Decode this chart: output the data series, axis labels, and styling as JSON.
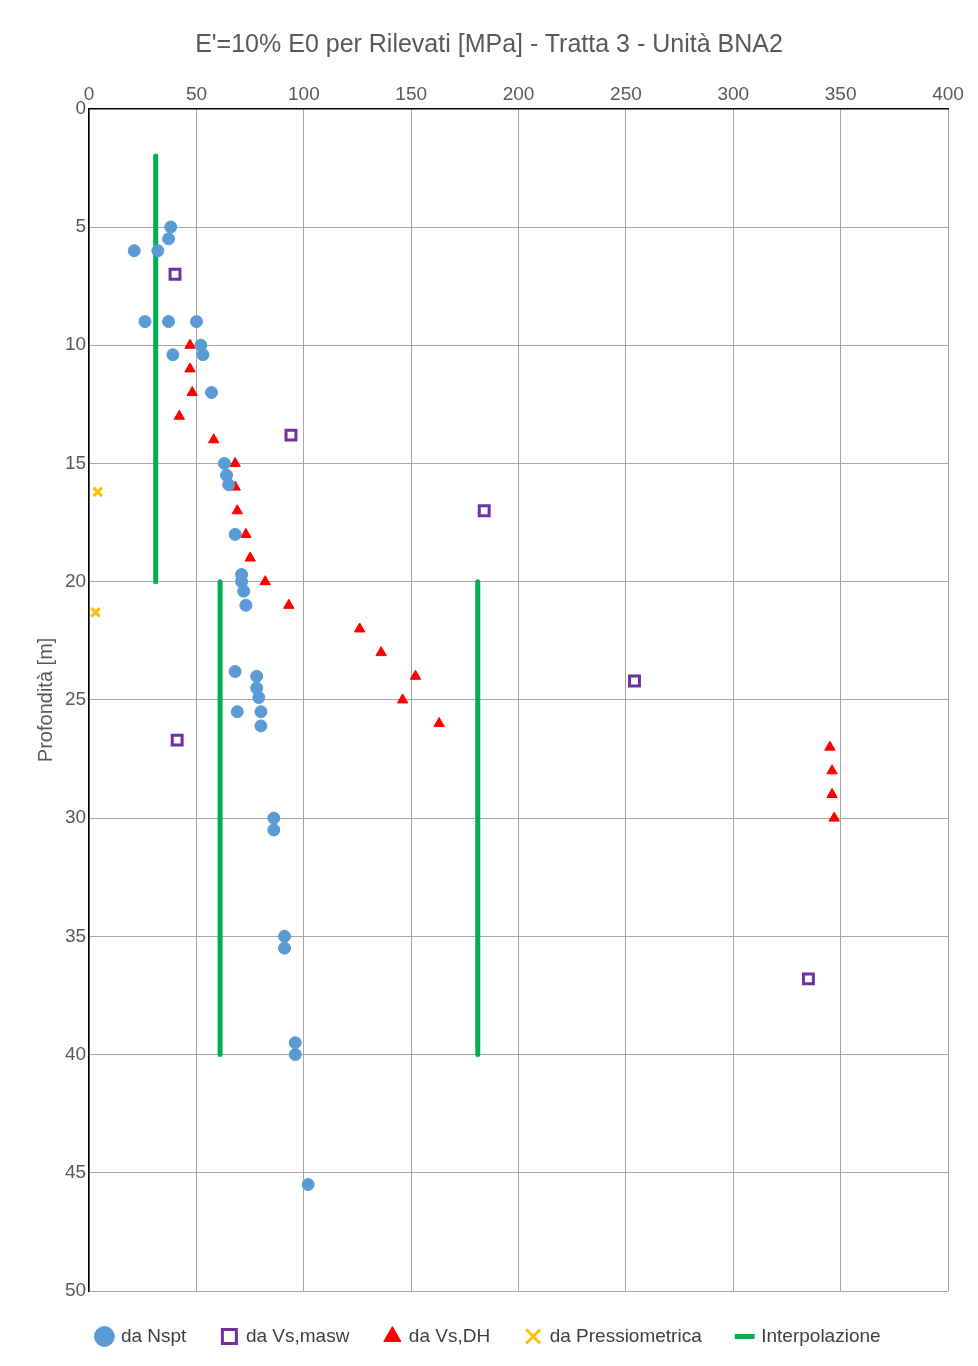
{
  "chart_data": {
    "type": "scatter",
    "title": "E'=10% E0 per Rilevati [MPa] - Tratta 3 - Unità BNA2",
    "ylabel": "Profondità [m]",
    "xlim": [
      0,
      400
    ],
    "xticks": [
      0,
      50,
      100,
      150,
      200,
      250,
      300,
      350,
      400
    ],
    "ylim": [
      50,
      0
    ],
    "yticks": [
      0,
      5,
      10,
      15,
      20,
      25,
      30,
      35,
      40,
      45,
      50
    ],
    "grid": true,
    "legend": "bottom",
    "series": [
      {
        "name": "da Nspt",
        "color": "#5b9bd5",
        "marker": "circle",
        "x": [
          38,
          37,
          21,
          32,
          26,
          37,
          50,
          52,
          39,
          53,
          57,
          63,
          64,
          65,
          68,
          71,
          71,
          72,
          73,
          68,
          78,
          78,
          79,
          80,
          69,
          80,
          86,
          86,
          91,
          91,
          96,
          96,
          102
        ],
        "values": [
          5,
          5.5,
          6,
          6,
          9,
          9,
          9,
          10,
          10.4,
          10.4,
          12,
          15,
          15.5,
          15.9,
          18,
          19.7,
          20,
          20.4,
          21,
          23.8,
          24,
          24.5,
          24.9,
          25.5,
          25.5,
          26.1,
          30,
          30.5,
          35,
          35.5,
          39.5,
          40,
          45.5
        ]
      },
      {
        "name": "da Vs,masw",
        "color": "#7030a0",
        "marker": "square",
        "x": [
          40,
          94,
          184,
          254,
          41,
          335
        ],
        "values": [
          7,
          13.8,
          17,
          24.2,
          26.7,
          36.8
        ]
      },
      {
        "name": "da Vs,DH",
        "color": "#ff0000",
        "marker": "triangle",
        "x": [
          47,
          47,
          48,
          42,
          58,
          68,
          68,
          69,
          73,
          75,
          82,
          93,
          126,
          136,
          152,
          146,
          163,
          345,
          346,
          346,
          347
        ],
        "values": [
          10,
          11,
          12,
          13,
          14,
          15,
          16,
          17,
          18,
          19,
          20,
          21,
          22,
          23,
          24,
          25,
          26,
          27,
          28,
          29,
          30
        ]
      },
      {
        "name": "da Pressiometrica",
        "color": "#ffc000",
        "marker": "cross",
        "x": [
          4,
          3
        ],
        "values": [
          16.2,
          21.3
        ]
      },
      {
        "name": "Interpolazione",
        "type": "line",
        "color": "#00b050",
        "marker": "none",
        "x": [
          31,
          31,
          null,
          61,
          61,
          null,
          181,
          181
        ],
        "values": [
          2,
          20,
          null,
          20,
          40,
          null,
          20,
          40
        ]
      }
    ]
  }
}
